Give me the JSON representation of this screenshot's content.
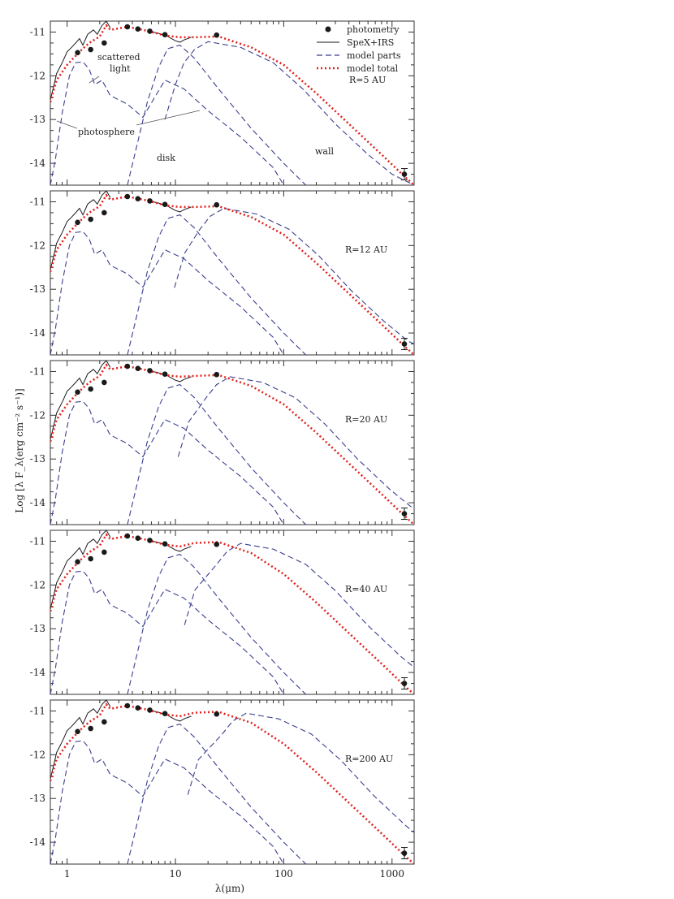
{
  "figure": {
    "xlabel": "λ(μm)",
    "ylabel": "Log [λ F_λ(erg cm⁻² s⁻¹)]",
    "y_ticks": [
      "-11",
      "-12",
      "-13",
      "-14"
    ],
    "x_ticks": [
      "1",
      "10",
      "100",
      "1000"
    ]
  },
  "legend": {
    "photometry": "photometry",
    "spex": "SpeX+IRS",
    "parts": "model parts",
    "total": "model total"
  },
  "annotations": {
    "scattered_1": "scattered",
    "scattered_2": "light",
    "photosphere": "photosphere",
    "disk": "disk",
    "wall": "wall"
  },
  "colors": {
    "photometry": "#1a1a1a",
    "spex": "#1a1a1a",
    "parts": "#3a3f8f",
    "total": "#e0201b",
    "frame": "#333333"
  },
  "chart_data": {
    "type": "line",
    "x_scale": "log",
    "xlim": [
      0.7,
      1600
    ],
    "ylim": [
      -14.5,
      -10.75
    ],
    "panels": [
      {
        "label": "R=5 AU",
        "wall_peak_x": 20,
        "wall_peak_y": -11.22,
        "total_peak_y": -11.1
      },
      {
        "label": "R=12 AU",
        "wall_peak_x": 28,
        "wall_peak_y": -11.15,
        "total_peak_y": -11.1
      },
      {
        "label": "R=20 AU",
        "wall_peak_x": 32,
        "wall_peak_y": -11.12,
        "total_peak_y": -11.08
      },
      {
        "label": "R=40 AU",
        "wall_peak_x": 40,
        "wall_peak_y": -11.05,
        "total_peak_y": -11.02
      },
      {
        "label": "R=200 AU",
        "wall_peak_x": 45,
        "wall_peak_y": -11.05,
        "total_peak_y": -11.02
      }
    ],
    "photometry": [
      {
        "x": 1.25,
        "y": -11.47
      },
      {
        "x": 1.65,
        "y": -11.4
      },
      {
        "x": 2.2,
        "y": -11.25
      },
      {
        "x": 3.6,
        "y": -10.88
      },
      {
        "x": 4.5,
        "y": -10.93
      },
      {
        "x": 5.8,
        "y": -10.98
      },
      {
        "x": 8.0,
        "y": -11.06
      },
      {
        "x": 24,
        "y": -11.07
      },
      {
        "x": 1300,
        "y": -14.25
      }
    ],
    "photometry_error": {
      "x": 1300,
      "y": -14.25,
      "err": 0.13
    },
    "spex_irs": [
      {
        "x": 0.7,
        "y": -12.55
      },
      {
        "x": 0.75,
        "y": -12.25
      },
      {
        "x": 0.8,
        "y": -11.95
      },
      {
        "x": 0.9,
        "y": -11.7
      },
      {
        "x": 1.0,
        "y": -11.45
      },
      {
        "x": 1.1,
        "y": -11.35
      },
      {
        "x": 1.2,
        "y": -11.25
      },
      {
        "x": 1.3,
        "y": -11.15
      },
      {
        "x": 1.4,
        "y": -11.3
      },
      {
        "x": 1.55,
        "y": -11.05
      },
      {
        "x": 1.75,
        "y": -10.95
      },
      {
        "x": 1.9,
        "y": -11.05
      },
      {
        "x": 2.1,
        "y": -10.85
      },
      {
        "x": 2.3,
        "y": -10.75
      },
      {
        "x": 2.5,
        "y": -10.9
      },
      {
        "x": 5.5,
        "y": -10.97
      },
      {
        "x": 7.0,
        "y": -11.03
      },
      {
        "x": 8.5,
        "y": -11.1
      },
      {
        "x": 10,
        "y": -11.2
      },
      {
        "x": 11,
        "y": -11.23
      },
      {
        "x": 12,
        "y": -11.18
      },
      {
        "x": 14,
        "y": -11.12
      }
    ],
    "photosphere": [
      {
        "x": 0.7,
        "y": -14.5
      },
      {
        "x": 0.78,
        "y": -13.9
      },
      {
        "x": 0.9,
        "y": -12.85
      },
      {
        "x": 1.05,
        "y": -12.0
      },
      {
        "x": 1.2,
        "y": -11.7
      },
      {
        "x": 1.4,
        "y": -11.68
      },
      {
        "x": 1.6,
        "y": -11.85
      },
      {
        "x": 1.8,
        "y": -12.2
      },
      {
        "x": 2.1,
        "y": -12.1
      },
      {
        "x": 2.5,
        "y": -12.45
      },
      {
        "x": 3.6,
        "y": -12.65
      },
      {
        "x": 5,
        "y": -12.95
      },
      {
        "x": 8,
        "y": -12.1
      },
      {
        "x": 12,
        "y": -12.3
      },
      {
        "x": 20,
        "y": -12.8
      },
      {
        "x": 40,
        "y": -13.4
      },
      {
        "x": 80,
        "y": -14.1
      },
      {
        "x": 100,
        "y": -14.5
      }
    ],
    "disk": [
      {
        "x": 3.6,
        "y": -14.5
      },
      {
        "x": 4.5,
        "y": -13.5
      },
      {
        "x": 5.5,
        "y": -12.6
      },
      {
        "x": 7,
        "y": -11.8
      },
      {
        "x": 8.5,
        "y": -11.38
      },
      {
        "x": 11,
        "y": -11.3
      },
      {
        "x": 15,
        "y": -11.6
      },
      {
        "x": 25,
        "y": -12.3
      },
      {
        "x": 50,
        "y": -13.2
      },
      {
        "x": 100,
        "y": -14.0
      },
      {
        "x": 160,
        "y": -14.5
      }
    ],
    "wall": [
      {
        "x": 8,
        "y": -13.0
      },
      {
        "x": 10,
        "y": -12.2
      },
      {
        "x": 12,
        "y": -11.7
      },
      {
        "x": 15,
        "y": -11.4
      },
      {
        "x": 20,
        "y": -11.22
      },
      {
        "x": 40,
        "y": -11.35
      },
      {
        "x": 80,
        "y": -11.7
      },
      {
        "x": 150,
        "y": -12.3
      },
      {
        "x": 300,
        "y": -13.1
      },
      {
        "x": 600,
        "y": -13.8
      },
      {
        "x": 1000,
        "y": -14.25
      },
      {
        "x": 1600,
        "y": -14.5
      }
    ],
    "total": [
      {
        "x": 0.7,
        "y": -12.6
      },
      {
        "x": 0.8,
        "y": -12.1
      },
      {
        "x": 1.0,
        "y": -11.75
      },
      {
        "x": 1.3,
        "y": -11.45
      },
      {
        "x": 1.6,
        "y": -11.25
      },
      {
        "x": 2.0,
        "y": -11.1
      },
      {
        "x": 2.3,
        "y": -10.85
      },
      {
        "x": 2.5,
        "y": -10.95
      },
      {
        "x": 3.6,
        "y": -10.88
      },
      {
        "x": 5.5,
        "y": -10.97
      },
      {
        "x": 8,
        "y": -11.08
      },
      {
        "x": 11,
        "y": -11.12
      },
      {
        "x": 15,
        "y": -11.12
      },
      {
        "x": 25,
        "y": -11.1
      },
      {
        "x": 50,
        "y": -11.35
      },
      {
        "x": 100,
        "y": -11.75
      },
      {
        "x": 200,
        "y": -12.4
      },
      {
        "x": 400,
        "y": -13.1
      },
      {
        "x": 800,
        "y": -13.8
      },
      {
        "x": 1300,
        "y": -14.3
      },
      {
        "x": 1600,
        "y": -14.5
      }
    ]
  }
}
